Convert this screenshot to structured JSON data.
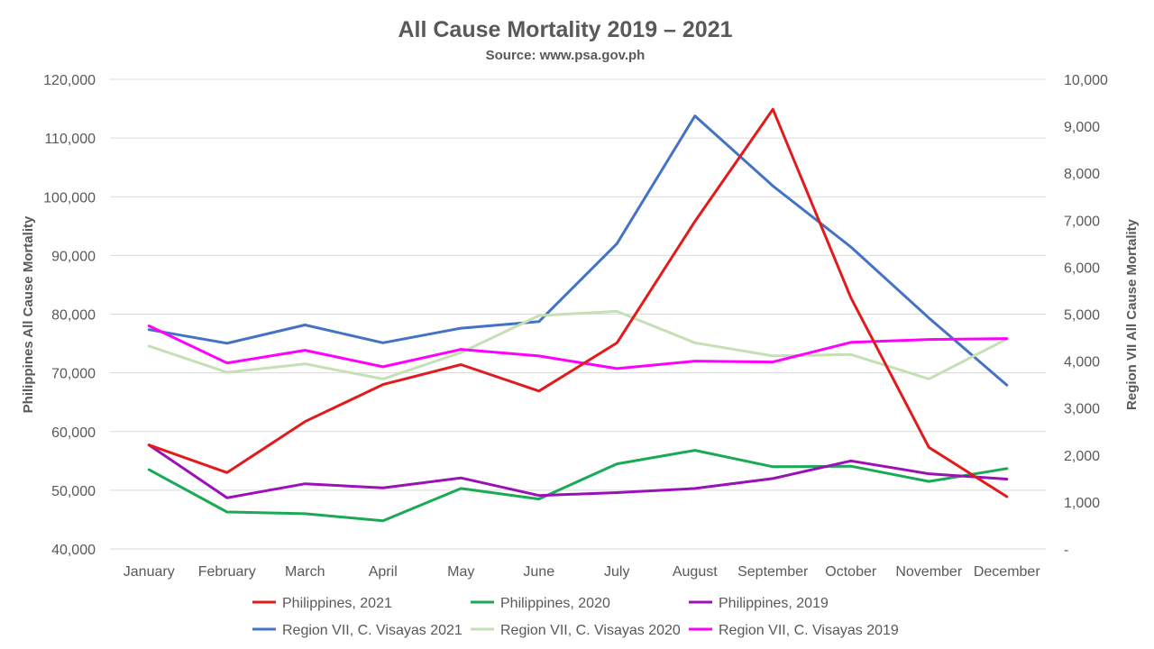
{
  "chart_data": {
    "type": "line",
    "title": "All Cause Mortality 2019 – 2021",
    "subtitle": "Source: www.psa.gov.ph",
    "ylabel": "Philippines All Cause Mortality",
    "y2label": "Region VII All Cause Mortality",
    "ylim": [
      40000,
      120000
    ],
    "y2lim": [
      0,
      10000
    ],
    "yticks": [
      "40,000",
      "50,000",
      "60,000",
      "70,000",
      "80,000",
      "90,000",
      "100,000",
      "110,000",
      "120,000"
    ],
    "y2ticks": [
      "-",
      "1,000",
      "2,000",
      "3,000",
      "4,000",
      "5,000",
      "6,000",
      "7,000",
      "8,000",
      "9,000",
      "10,000"
    ],
    "grid": true,
    "legend_position": "bottom",
    "categories": [
      "January",
      "February",
      "March",
      "April",
      "May",
      "June",
      "July",
      "August",
      "September",
      "October",
      "November",
      "December"
    ],
    "series": [
      {
        "name": "Philippines, 2021",
        "axis": "left",
        "color": "#e31a1c",
        "values": [
          57700,
          53000,
          61700,
          68000,
          71400,
          66900,
          75100,
          95800,
          114900,
          82800,
          57300,
          48900
        ]
      },
      {
        "name": "Philippines, 2020",
        "axis": "left",
        "color": "#1aaa55",
        "values": [
          53500,
          46300,
          46000,
          44800,
          50300,
          48500,
          54500,
          56800,
          54000,
          54100,
          51500,
          53700
        ]
      },
      {
        "name": "Philippines, 2019",
        "axis": "left",
        "color": "#9b10b7",
        "values": [
          57700,
          48700,
          51100,
          50400,
          52100,
          49100,
          49600,
          50300,
          52000,
          55000,
          52800,
          51900
        ]
      },
      {
        "name": "Region VII, C. Visayas 2021",
        "axis": "right",
        "color": "#4472c4",
        "values": [
          4670,
          4380,
          4770,
          4390,
          4700,
          4840,
          6500,
          9220,
          7730,
          6430,
          4920,
          3490
        ]
      },
      {
        "name": "Region VII, C. Visayas 2020",
        "axis": "right",
        "color": "#c5e0b4",
        "values": [
          4320,
          3760,
          3940,
          3620,
          4180,
          4970,
          5060,
          4390,
          4110,
          4140,
          3620,
          4470
        ]
      },
      {
        "name": "Region VII, C. Visayas 2019",
        "axis": "right",
        "color": "#ff00ff",
        "values": [
          4750,
          3960,
          4230,
          3880,
          4250,
          4110,
          3840,
          4000,
          3980,
          4400,
          4460,
          4480
        ]
      }
    ]
  }
}
